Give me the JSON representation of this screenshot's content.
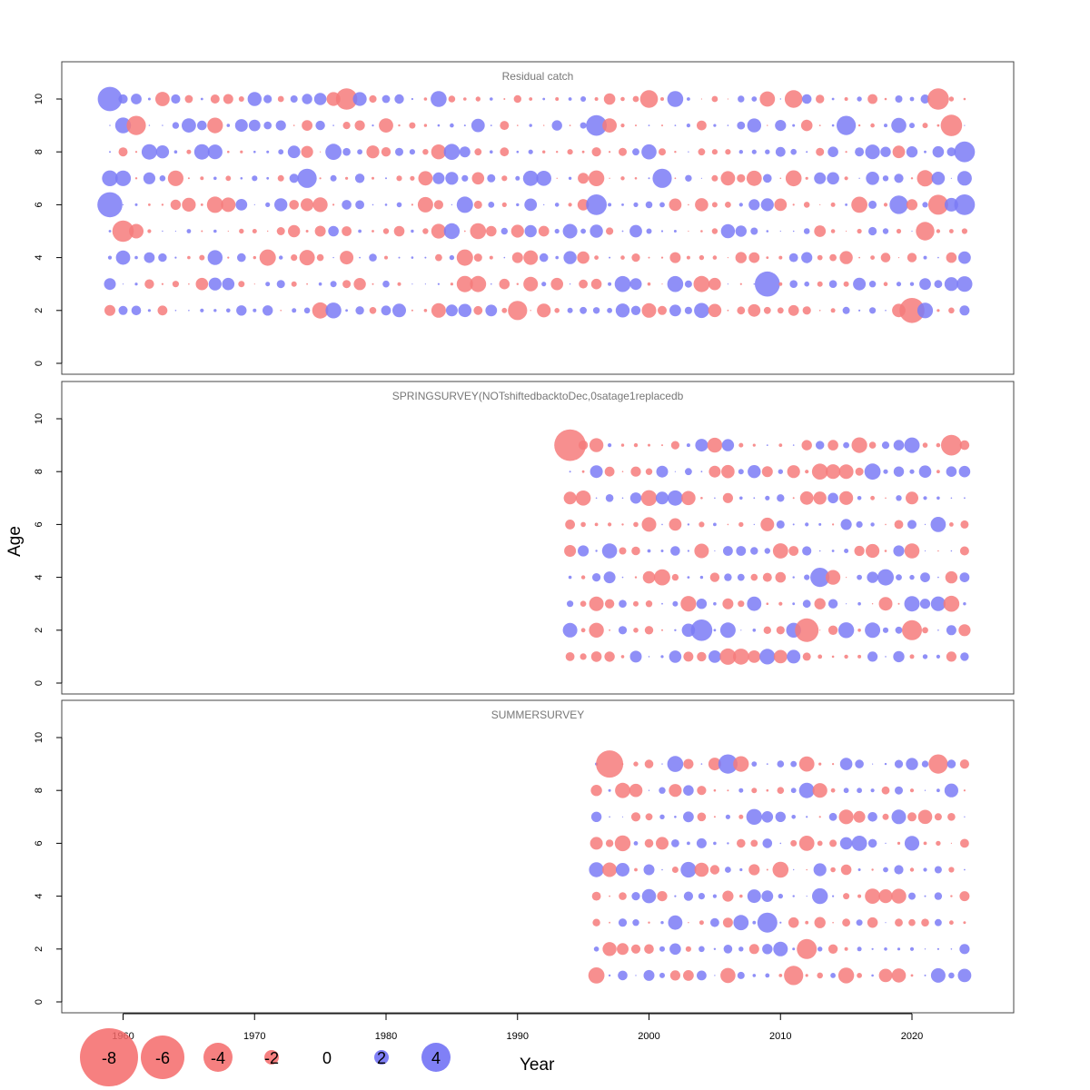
{
  "chart_data": {
    "type": "scatter",
    "subtype": "bubble-residuals",
    "xlabel": "Year",
    "ylabel": "Age",
    "x_ticks": [
      1960,
      1970,
      1980,
      1990,
      2000,
      2010,
      2020
    ],
    "y_ticks": [
      0,
      2,
      4,
      6,
      8,
      10
    ],
    "xlim": [
      1955,
      2027
    ],
    "ylim": [
      -0.5,
      11.3
    ],
    "colors": {
      "positive": "#6a6af5",
      "negative": "#f56a6a"
    },
    "legend": [
      {
        "label": "-8",
        "value": -8
      },
      {
        "label": "-6",
        "value": -6
      },
      {
        "label": "-4",
        "value": -4
      },
      {
        "label": "-2",
        "value": -2
      },
      {
        "label": "0",
        "value": 0
      },
      {
        "label": "2",
        "value": 2
      },
      {
        "label": "4",
        "value": 4
      }
    ],
    "panels": [
      {
        "title": "Residual catch",
        "years": [
          1959,
          2024
        ],
        "ages": [
          2,
          3,
          4,
          5,
          6,
          7,
          8,
          9,
          10
        ],
        "notable_points": [
          {
            "year": 1959,
            "age": 10,
            "residual": 3.2
          },
          {
            "year": 1959,
            "age": 6,
            "residual": 3.3
          },
          {
            "year": 1960,
            "age": 5,
            "residual": -2.8
          },
          {
            "year": 1961,
            "age": 9,
            "residual": -2.5
          },
          {
            "year": 1974,
            "age": 7,
            "residual": 2.5
          },
          {
            "year": 1977,
            "age": 10,
            "residual": -2.8
          },
          {
            "year": 1990,
            "age": 2,
            "residual": -2.5
          },
          {
            "year": 1996,
            "age": 9,
            "residual": 2.7
          },
          {
            "year": 1996,
            "age": 6,
            "residual": 2.7
          },
          {
            "year": 2000,
            "age": 10,
            "residual": -2.3
          },
          {
            "year": 2001,
            "age": 7,
            "residual": 2.5
          },
          {
            "year": 2009,
            "age": 3,
            "residual": 3.3
          },
          {
            "year": 2011,
            "age": 10,
            "residual": -2.3
          },
          {
            "year": 2015,
            "age": 9,
            "residual": 2.5
          },
          {
            "year": 2019,
            "age": 6,
            "residual": 2.4
          },
          {
            "year": 2020,
            "age": 2,
            "residual": -3.3
          },
          {
            "year": 2021,
            "age": 5,
            "residual": -2.4
          },
          {
            "year": 2022,
            "age": 10,
            "residual": -2.8
          },
          {
            "year": 2022,
            "age": 6,
            "residual": -2.6
          },
          {
            "year": 2023,
            "age": 9,
            "residual": -2.8
          },
          {
            "year": 2024,
            "age": 8,
            "residual": 2.7
          },
          {
            "year": 2024,
            "age": 6,
            "residual": 2.7
          }
        ]
      },
      {
        "title": "SPRINGSURVEY(NOTshiftedbacktoDec,0satage1replacedb",
        "years": [
          1994,
          2024
        ],
        "ages": [
          1,
          2,
          3,
          4,
          5,
          6,
          7,
          8,
          9
        ],
        "notable_points": [
          {
            "year": 1994,
            "age": 9,
            "residual": -4.2
          },
          {
            "year": 2004,
            "age": 2,
            "residual": 2.8
          },
          {
            "year": 2012,
            "age": 2,
            "residual": -3.1
          },
          {
            "year": 2013,
            "age": 4,
            "residual": 2.5
          },
          {
            "year": 2020,
            "age": 2,
            "residual": -2.6
          },
          {
            "year": 2023,
            "age": 9,
            "residual": -2.7
          }
        ]
      },
      {
        "title": "SUMMERSURVEY",
        "years": [
          1996,
          2024
        ],
        "ages": [
          1,
          2,
          3,
          4,
          5,
          6,
          7,
          8,
          9
        ],
        "notable_points": [
          {
            "year": 1997,
            "age": 9,
            "residual": -3.6
          },
          {
            "year": 2006,
            "age": 9,
            "residual": 2.5
          },
          {
            "year": 2009,
            "age": 3,
            "residual": 2.6
          },
          {
            "year": 2011,
            "age": 1,
            "residual": -2.5
          },
          {
            "year": 2012,
            "age": 2,
            "residual": -2.6
          },
          {
            "year": 2022,
            "age": 9,
            "residual": -2.5
          }
        ]
      }
    ]
  }
}
